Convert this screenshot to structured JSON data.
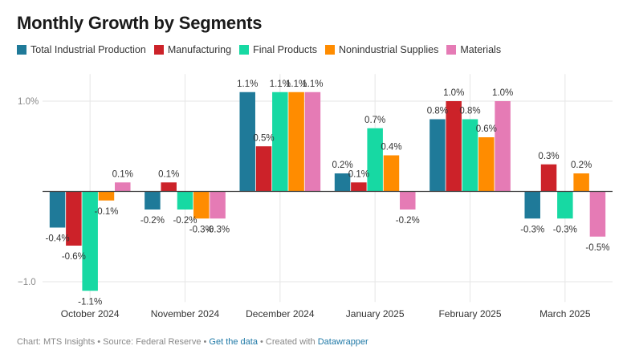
{
  "chart_data": {
    "type": "bar",
    "title": "Monthly Growth by Segments",
    "categories": [
      "October 2024",
      "November 2024",
      "December 2024",
      "January 2025",
      "February 2025",
      "March 2025"
    ],
    "series": [
      {
        "name": "Total Industrial Production",
        "color": "#1f7a99",
        "values": [
          -0.4,
          -0.2,
          1.1,
          0.2,
          0.8,
          -0.3
        ]
      },
      {
        "name": "Manufacturing",
        "color": "#cc2229",
        "values": [
          -0.6,
          0.1,
          0.5,
          0.1,
          1.0,
          0.3
        ]
      },
      {
        "name": "Final Products",
        "color": "#17d9a3",
        "values": [
          -1.1,
          -0.2,
          1.1,
          0.7,
          0.8,
          -0.3
        ]
      },
      {
        "name": "Nonindustrial Supplies",
        "color": "#ff8c00",
        "values": [
          -0.1,
          -0.3,
          1.1,
          0.4,
          0.6,
          0.2
        ]
      },
      {
        "name": "Materials",
        "color": "#e57bb5",
        "values": [
          0.1,
          -0.3,
          1.1,
          -0.2,
          1.0,
          -0.5
        ]
      }
    ],
    "y_ticks": [
      {
        "value": 1.0,
        "label": "1.0%"
      },
      {
        "value": -1.0,
        "label": "−1.0"
      }
    ],
    "value_labels": [
      [
        "-0.4%",
        "-0.2%",
        "1.1%",
        "0.2%",
        "0.8%",
        "-0.3%"
      ],
      [
        "-0.6%",
        "0.1%",
        "0.5%",
        "0.1%",
        "1.0%",
        "0.3%"
      ],
      [
        "-1.1%",
        "-0.2%",
        "1.1%",
        "0.7%",
        "0.8%",
        "-0.3%"
      ],
      [
        "-0.1%",
        "-0.3%",
        "1.1%",
        "0.4%",
        "0.6%",
        "0.2%"
      ],
      [
        "0.1%",
        "-0.3%",
        "1.1%",
        "-0.2%",
        "1.0%",
        "-0.5%"
      ]
    ],
    "ylim": [
      -1.1,
      1.3
    ],
    "xlabel": "",
    "ylabel": "",
    "grid": true,
    "legend_position": "top-left"
  },
  "footer": {
    "prefix": "Chart: MTS Insights • Source: Federal Reserve • ",
    "get_data": "Get the data",
    "created": " • Created with ",
    "tool": "Datawrapper"
  }
}
